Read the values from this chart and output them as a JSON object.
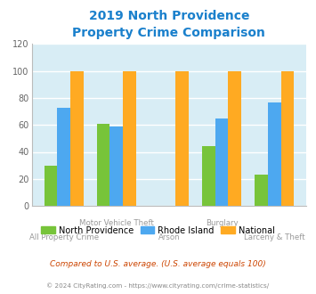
{
  "title": "2019 North Providence\nProperty Crime Comparison",
  "categories": [
    "All Property Crime",
    "Motor Vehicle Theft",
    "Arson",
    "Burglary",
    "Larceny & Theft"
  ],
  "north_providence": [
    30,
    61,
    0,
    44,
    23
  ],
  "rhode_island": [
    73,
    59,
    0,
    65,
    77
  ],
  "national": [
    100,
    100,
    100,
    100,
    100
  ],
  "color_np": "#77c43a",
  "color_ri": "#4da8f0",
  "color_nat": "#ffaa22",
  "ylim": [
    0,
    120
  ],
  "yticks": [
    0,
    20,
    40,
    60,
    80,
    100,
    120
  ],
  "bg_color": "#d8edf5",
  "title_color": "#1a80cc",
  "xlabel_color": "#999999",
  "legend_label_np": "North Providence",
  "legend_label_ri": "Rhode Island",
  "legend_label_nat": "National",
  "footnote1": "Compared to U.S. average. (U.S. average equals 100)",
  "footnote2": "© 2024 CityRating.com - https://www.cityrating.com/crime-statistics/",
  "footnote1_color": "#cc4400",
  "footnote2_color": "#888888"
}
